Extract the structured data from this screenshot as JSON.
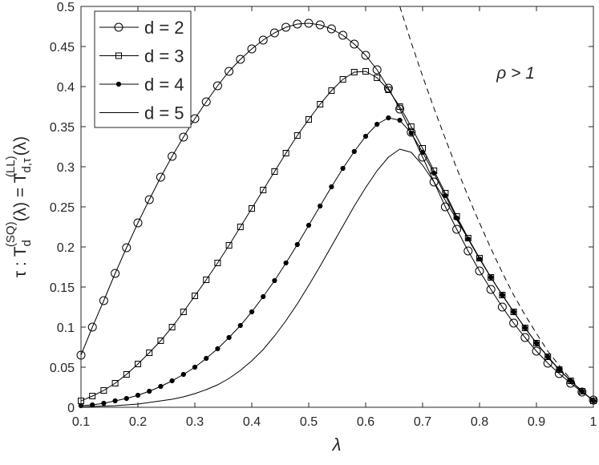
{
  "chart_data": {
    "type": "line",
    "xlabel": "λ",
    "ylabel": [
      "τ : T",
      "d",
      "(SQ)",
      "(λ) = T",
      "d,τ",
      "(LL)",
      "(λ)"
    ],
    "annotation": {
      "text": "ρ > 1",
      "x": 0.83,
      "y": 0.41
    },
    "xlim": [
      0.1,
      1
    ],
    "ylim": [
      0,
      0.5
    ],
    "xticks": [
      0.1,
      0.2,
      0.3,
      0.4,
      0.5,
      0.6,
      0.7,
      0.8,
      0.9,
      1
    ],
    "yticks": [
      0,
      0.05,
      0.1,
      0.15,
      0.2,
      0.25,
      0.3,
      0.35,
      0.4,
      0.45,
      0.5
    ],
    "legend": "upper left",
    "series": [
      {
        "name": "d = 2",
        "color": "#000000",
        "marker": "circle",
        "dash": "solid",
        "x": [
          0.1,
          0.12,
          0.14,
          0.16,
          0.18,
          0.2,
          0.22,
          0.24,
          0.26,
          0.28,
          0.3,
          0.32,
          0.34,
          0.36,
          0.38,
          0.4,
          0.42,
          0.44,
          0.46,
          0.48,
          0.5,
          0.52,
          0.54,
          0.56,
          0.58,
          0.6,
          0.62,
          0.64,
          0.66,
          0.68,
          0.7,
          0.72,
          0.74,
          0.76,
          0.78,
          0.8,
          0.82,
          0.84,
          0.86,
          0.88,
          0.9,
          0.92,
          0.94,
          0.96,
          0.98,
          1
        ],
        "values": [
          0.065,
          0.1,
          0.133,
          0.167,
          0.199,
          0.23,
          0.259,
          0.287,
          0.313,
          0.337,
          0.36,
          0.381,
          0.401,
          0.419,
          0.434,
          0.447,
          0.458,
          0.467,
          0.474,
          0.478,
          0.479,
          0.477,
          0.472,
          0.464,
          0.453,
          0.439,
          0.421,
          0.398,
          0.372,
          0.343,
          0.312,
          0.281,
          0.25,
          0.222,
          0.195,
          0.17,
          0.147,
          0.125,
          0.105,
          0.087,
          0.07,
          0.055,
          0.042,
          0.03,
          0.019,
          0.009
        ]
      },
      {
        "name": "d = 3",
        "color": "#000000",
        "marker": "square",
        "dash": "solid",
        "x": [
          0.1,
          0.12,
          0.14,
          0.16,
          0.18,
          0.2,
          0.22,
          0.24,
          0.26,
          0.28,
          0.3,
          0.32,
          0.34,
          0.36,
          0.38,
          0.4,
          0.42,
          0.44,
          0.46,
          0.48,
          0.5,
          0.52,
          0.54,
          0.56,
          0.58,
          0.6,
          0.62,
          0.64,
          0.66,
          0.68,
          0.7,
          0.72,
          0.74,
          0.76,
          0.78,
          0.8,
          0.82,
          0.84,
          0.86,
          0.88,
          0.9,
          0.92,
          0.94,
          0.96,
          0.98,
          1
        ],
        "values": [
          0.008,
          0.014,
          0.021,
          0.03,
          0.041,
          0.054,
          0.068,
          0.083,
          0.1,
          0.119,
          0.139,
          0.159,
          0.18,
          0.202,
          0.225,
          0.248,
          0.271,
          0.294,
          0.317,
          0.339,
          0.359,
          0.378,
          0.395,
          0.409,
          0.418,
          0.419,
          0.411,
          0.396,
          0.375,
          0.35,
          0.323,
          0.295,
          0.267,
          0.238,
          0.211,
          0.186,
          0.162,
          0.14,
          0.119,
          0.099,
          0.08,
          0.063,
          0.047,
          0.033,
          0.02,
          0.008
        ]
      },
      {
        "name": "d = 4",
        "color": "#000000",
        "marker": "dot",
        "dash": "solid",
        "x": [
          0.1,
          0.12,
          0.14,
          0.16,
          0.18,
          0.2,
          0.22,
          0.24,
          0.26,
          0.28,
          0.3,
          0.32,
          0.34,
          0.36,
          0.38,
          0.4,
          0.42,
          0.44,
          0.46,
          0.48,
          0.5,
          0.52,
          0.54,
          0.56,
          0.58,
          0.6,
          0.62,
          0.64,
          0.66,
          0.68,
          0.7,
          0.72,
          0.74,
          0.76,
          0.78,
          0.8,
          0.82,
          0.84,
          0.86,
          0.88,
          0.9,
          0.92,
          0.94,
          0.96,
          0.98,
          1
        ],
        "values": [
          0.002,
          0.003,
          0.005,
          0.008,
          0.011,
          0.015,
          0.02,
          0.026,
          0.033,
          0.041,
          0.05,
          0.061,
          0.073,
          0.087,
          0.102,
          0.119,
          0.138,
          0.158,
          0.18,
          0.203,
          0.227,
          0.251,
          0.275,
          0.298,
          0.319,
          0.338,
          0.353,
          0.361,
          0.358,
          0.342,
          0.318,
          0.292,
          0.264,
          0.236,
          0.21,
          0.185,
          0.162,
          0.14,
          0.119,
          0.099,
          0.08,
          0.063,
          0.047,
          0.033,
          0.02,
          0.008
        ]
      },
      {
        "name": "d = 5",
        "color": "#000000",
        "marker": null,
        "dash": "solid",
        "x": [
          0.1,
          0.12,
          0.14,
          0.16,
          0.18,
          0.2,
          0.22,
          0.24,
          0.26,
          0.28,
          0.3,
          0.32,
          0.34,
          0.36,
          0.38,
          0.4,
          0.42,
          0.44,
          0.46,
          0.48,
          0.5,
          0.52,
          0.54,
          0.56,
          0.58,
          0.6,
          0.62,
          0.64,
          0.66,
          0.68,
          0.7,
          0.72,
          0.74,
          0.76,
          0.78,
          0.8,
          0.82,
          0.84,
          0.86,
          0.88,
          0.9,
          0.92,
          0.94,
          0.96,
          0.98,
          1
        ],
        "values": [
          0.0005,
          0.001,
          0.0015,
          0.002,
          0.003,
          0.004,
          0.006,
          0.008,
          0.01,
          0.013,
          0.017,
          0.022,
          0.028,
          0.036,
          0.046,
          0.058,
          0.072,
          0.089,
          0.108,
          0.129,
          0.152,
          0.176,
          0.201,
          0.226,
          0.251,
          0.274,
          0.295,
          0.312,
          0.322,
          0.318,
          0.302,
          0.281,
          0.258,
          0.234,
          0.21,
          0.186,
          0.162,
          0.14,
          0.119,
          0.099,
          0.08,
          0.063,
          0.047,
          0.033,
          0.02,
          0.008
        ]
      },
      {
        "color": "#000000",
        "marker": null,
        "dash": "dashed",
        "x": [
          0.66,
          0.68,
          0.7,
          0.72,
          0.74,
          0.76,
          0.78,
          0.8,
          0.82,
          0.84,
          0.86,
          0.88,
          0.9,
          0.92,
          0.94,
          0.96,
          0.98,
          1
        ],
        "values": [
          0.5,
          0.455,
          0.413,
          0.373,
          0.335,
          0.298,
          0.263,
          0.23,
          0.198,
          0.168,
          0.14,
          0.115,
          0.092,
          0.07,
          0.052,
          0.035,
          0.02,
          0.008
        ]
      }
    ]
  }
}
